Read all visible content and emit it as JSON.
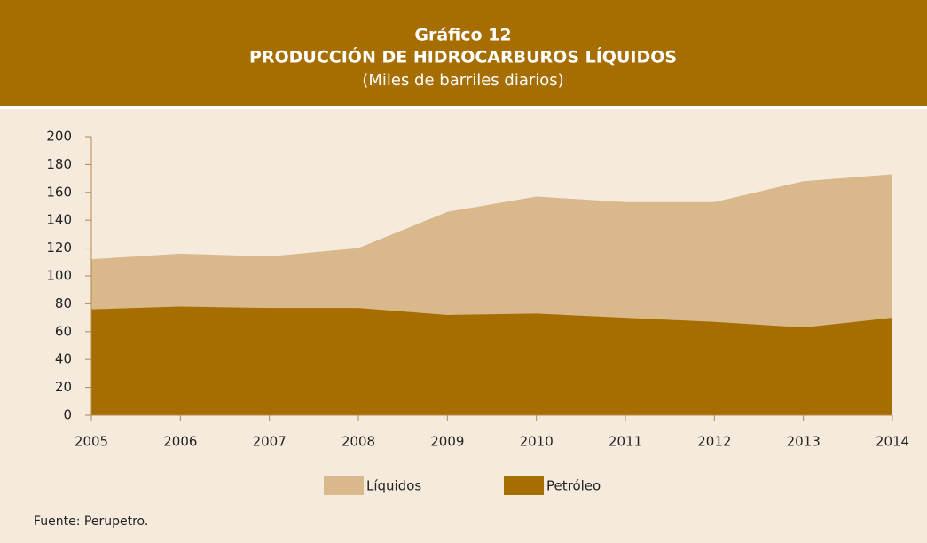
{
  "chart_data": {
    "type": "area",
    "title": "Gráfico 12",
    "subtitle": "PRODUCCIÓN DE HIDROCARBUROS LÍQUIDOS",
    "units": "(Miles de barriles diarios)",
    "source": "Fuente: Perupetro.",
    "categories": [
      "2005",
      "2006",
      "2007",
      "2008",
      "2009",
      "2010",
      "2011",
      "2012",
      "2013",
      "2014"
    ],
    "series": [
      {
        "name": "Líquidos",
        "color": "#d9b98b",
        "values": [
          112,
          116,
          114,
          120,
          146,
          157,
          153,
          153,
          168,
          173
        ]
      },
      {
        "name": "Petróleo",
        "color": "#a66d00",
        "values": [
          76,
          78,
          77,
          77,
          72,
          73,
          70,
          67,
          63,
          70
        ]
      }
    ],
    "ylim": [
      0,
      200
    ],
    "yticks": [
      0,
      20,
      40,
      60,
      80,
      100,
      120,
      140,
      160,
      180,
      200
    ]
  }
}
